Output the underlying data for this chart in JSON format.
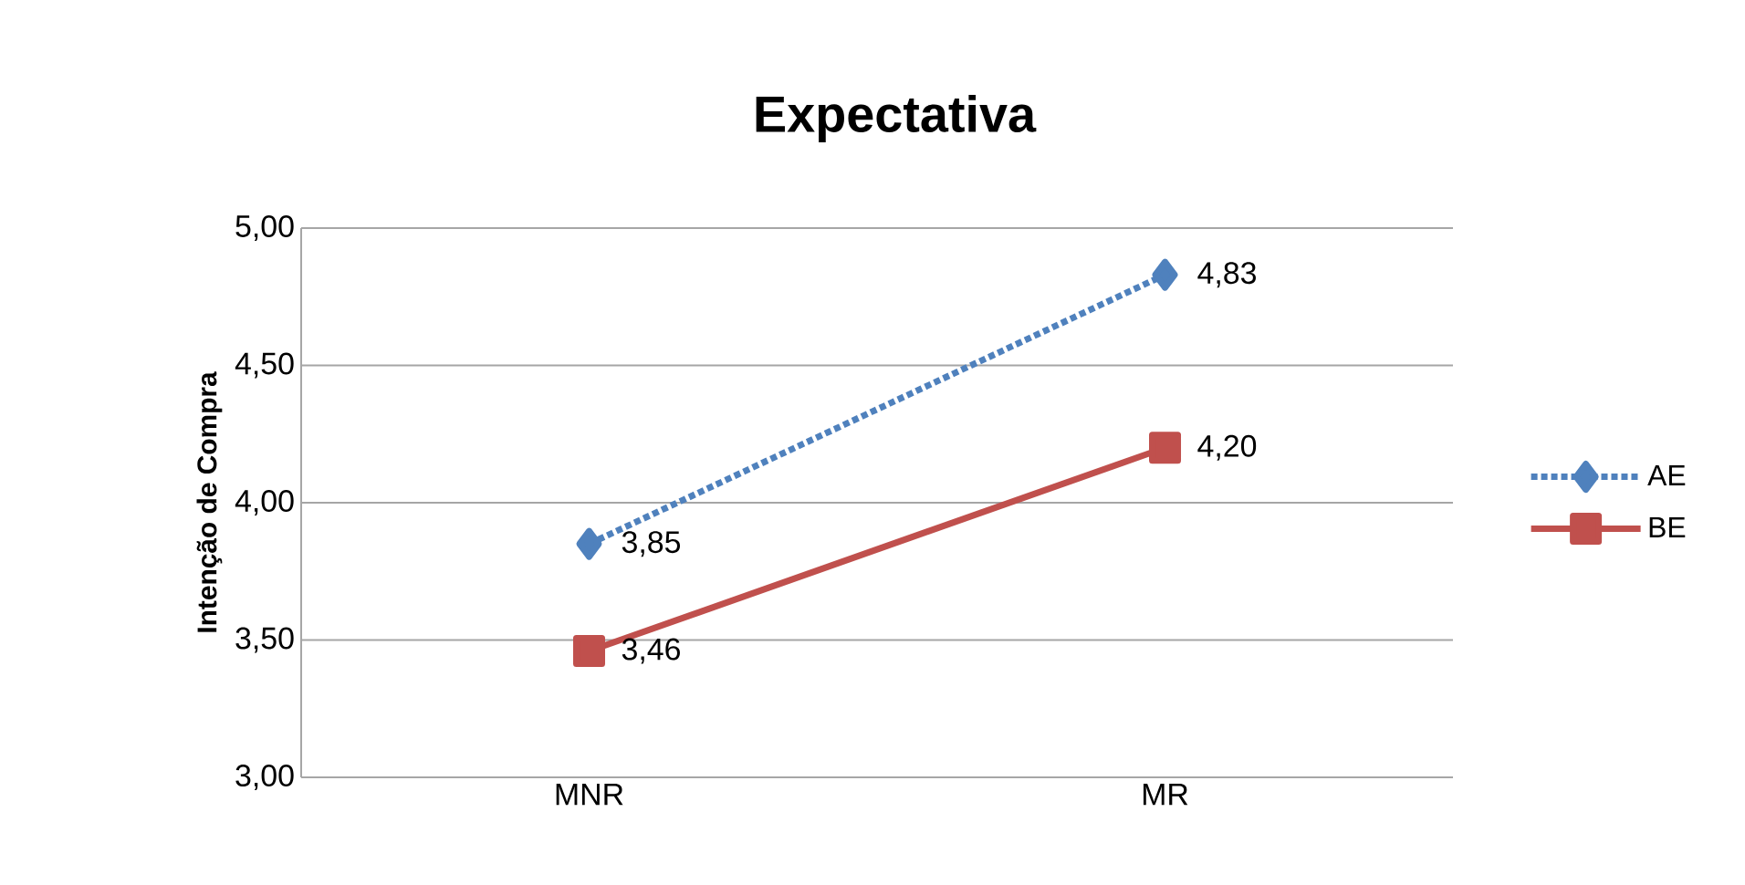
{
  "chart_data": {
    "type": "line",
    "title": "Expectativa",
    "ylabel": "Intenção de Compra",
    "categories": [
      "MNR",
      "MR"
    ],
    "series": [
      {
        "name": "AE",
        "color": "#4f81bd",
        "values": [
          3.85,
          4.83
        ],
        "value_labels": [
          "3,85",
          "4,83"
        ],
        "marker": "diamond",
        "line_style": "dotted"
      },
      {
        "name": "BE",
        "color": "#c0504d",
        "values": [
          3.46,
          4.2
        ],
        "value_labels": [
          "3,46",
          "4,20"
        ],
        "marker": "square",
        "line_style": "solid"
      }
    ],
    "ylim": [
      3,
      5
    ],
    "yticks": [
      {
        "value": 3,
        "label": "3,00"
      },
      {
        "value": 3.5,
        "label": "3,50"
      },
      {
        "value": 4,
        "label": "4,00"
      },
      {
        "value": 4.5,
        "label": "4,50"
      },
      {
        "value": 5,
        "label": "5,00"
      }
    ],
    "grid": "y",
    "legend": "right"
  }
}
